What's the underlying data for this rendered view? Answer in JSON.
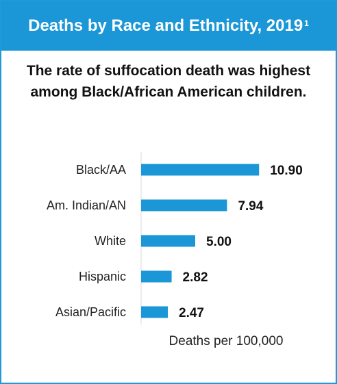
{
  "header": {
    "title": "Deaths by Race and Ethnicity, 2019",
    "footnote": "1"
  },
  "subtitle": {
    "line1": "The rate of suffocation death was highest",
    "line2": "among Black/African American children."
  },
  "colors": {
    "header_bg": "#1b96d6",
    "bar": "#1b96d6",
    "border": "#2299d7"
  },
  "chart_data": {
    "type": "bar",
    "orientation": "horizontal",
    "categories": [
      "Black/AA",
      "Am. Indian/AN",
      "White",
      "Hispanic",
      "Asian/Pacific"
    ],
    "values": [
      10.9,
      7.94,
      5.0,
      2.82,
      2.47
    ],
    "value_labels": [
      "10.90",
      "7.94",
      "5.00",
      "2.82",
      "2.47"
    ],
    "xlabel": "Deaths per 100,000",
    "xlim": [
      0,
      12
    ],
    "grid": false
  }
}
